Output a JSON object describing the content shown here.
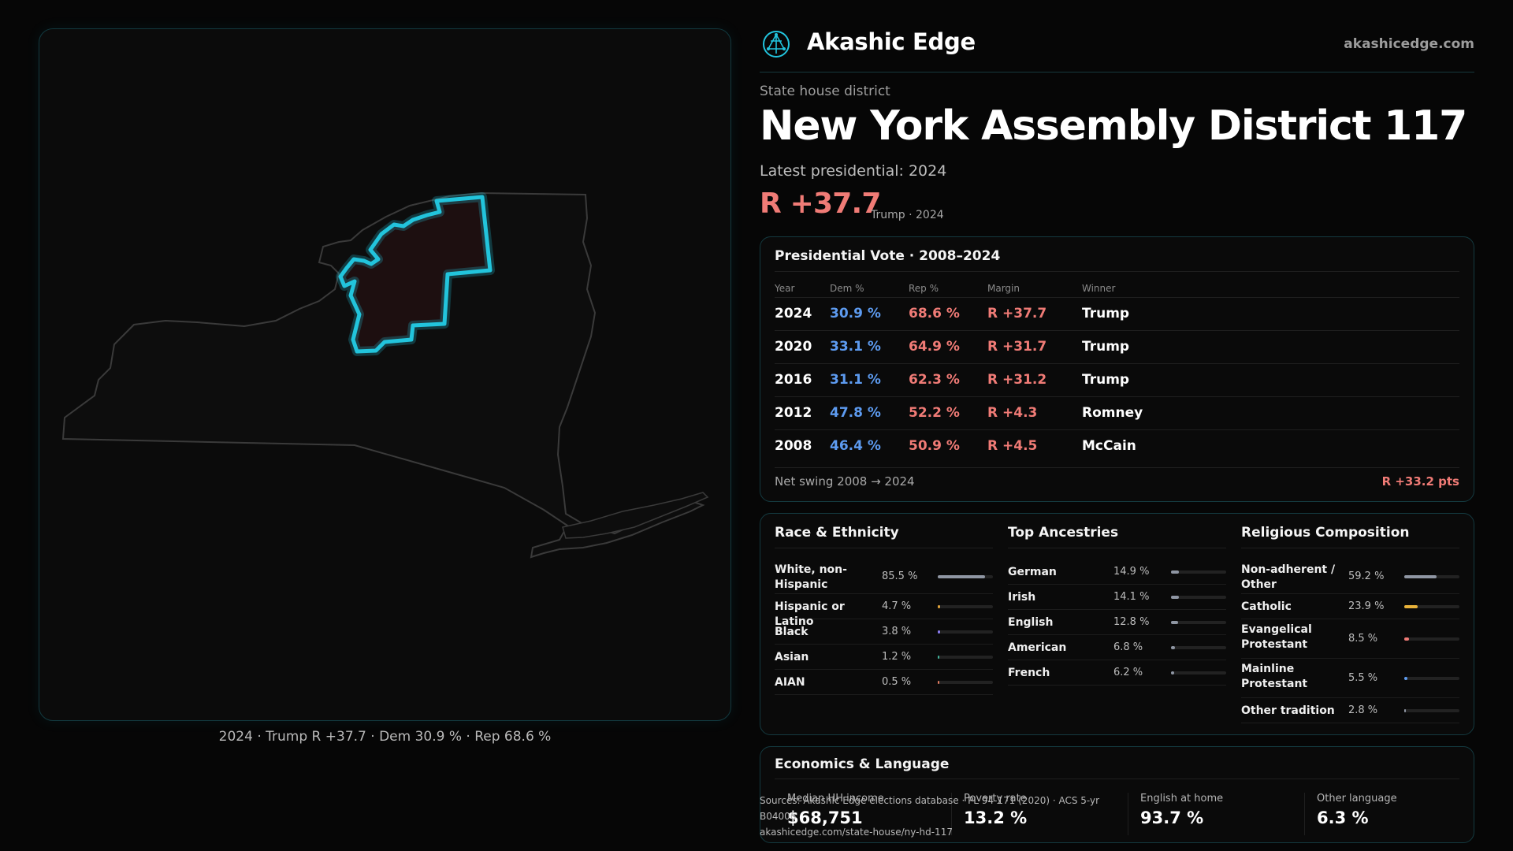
{
  "brand": {
    "name": "Akashic Edge",
    "url": "akashicedge.com",
    "logo_icon": "geodesic-node-icon",
    "accent_color": "#22c4dd"
  },
  "header": {
    "subtitle": "State house district",
    "title": "New York  Assembly District 117",
    "latest_label": "Latest presidential: 2024",
    "margin": "R +37.7",
    "margin_sub": "Trump · 2024"
  },
  "map": {
    "caption": "2024 · Trump R +37.7 · Dem 30.9 % · Rep 68.6 %",
    "state": "New York",
    "highlight_color": "#22c4dd"
  },
  "presidential": {
    "title": "Presidential Vote · 2008–2024",
    "columns": [
      "Year",
      "Dem %",
      "Rep %",
      "Margin",
      "Winner"
    ],
    "rows": [
      {
        "year": "2024",
        "dem": "30.9 %",
        "rep": "68.6 %",
        "margin": "R +37.7",
        "winner": "Trump"
      },
      {
        "year": "2020",
        "dem": "33.1 %",
        "rep": "64.9 %",
        "margin": "R +31.7",
        "winner": "Trump"
      },
      {
        "year": "2016",
        "dem": "31.1 %",
        "rep": "62.3 %",
        "margin": "R +31.2",
        "winner": "Trump"
      },
      {
        "year": "2012",
        "dem": "47.8 %",
        "rep": "52.2 %",
        "margin": "R +4.3",
        "winner": "Romney"
      },
      {
        "year": "2008",
        "dem": "46.4 %",
        "rep": "50.9 %",
        "margin": "R +4.5",
        "winner": "McCain"
      }
    ],
    "net_swing_label": "Net swing 2008 → 2024",
    "net_swing_value": "R +33.2 pts",
    "dem_color": "#5d9bf0",
    "rep_color": "#f07b76"
  },
  "race": {
    "title": "Race & Ethnicity",
    "items": [
      {
        "label": "White, non-Hispanic",
        "value": "85.5 %",
        "share": 0.855,
        "color": "#8f96a3"
      },
      {
        "label": "Hispanic or Latino",
        "value": "4.7 %",
        "share": 0.047,
        "color": "#e0a23a"
      },
      {
        "label": "Black",
        "value": "3.8 %",
        "share": 0.038,
        "color": "#8a7cf0"
      },
      {
        "label": "Asian",
        "value": "1.2 %",
        "share": 0.012,
        "color": "#3fb39a"
      },
      {
        "label": "AIAN",
        "value": "0.5 %",
        "share": 0.005,
        "color": "#e07a5f"
      }
    ]
  },
  "ancestry": {
    "title": "Top Ancestries",
    "items": [
      {
        "label": "German",
        "value": "14.9 %",
        "share": 0.149,
        "color": "#8f96a3"
      },
      {
        "label": "Irish",
        "value": "14.1 %",
        "share": 0.141,
        "color": "#8f96a3"
      },
      {
        "label": "English",
        "value": "12.8 %",
        "share": 0.128,
        "color": "#8f96a3"
      },
      {
        "label": "American",
        "value": "6.8 %",
        "share": 0.068,
        "color": "#8f96a3"
      },
      {
        "label": "French",
        "value": "6.2 %",
        "share": 0.062,
        "color": "#8f96a3"
      }
    ]
  },
  "religion": {
    "title": "Religious Composition",
    "items": [
      {
        "label": "Non-adherent / Other",
        "value": "59.2 %",
        "share": 0.592,
        "color": "#8f96a3"
      },
      {
        "label": "Catholic",
        "value": "23.9 %",
        "share": 0.239,
        "color": "#e8b23a"
      },
      {
        "label": "Evangelical Protestant",
        "value": "8.5 %",
        "share": 0.085,
        "color": "#f07b76"
      },
      {
        "label": "Mainline Protestant",
        "value": "5.5 %",
        "share": 0.055,
        "color": "#5d9bf0"
      },
      {
        "label": "Other tradition",
        "value": "2.8 %",
        "share": 0.028,
        "color": "#8f96a3"
      }
    ]
  },
  "economics": {
    "title": "Economics & Language",
    "cells": [
      {
        "label": "Median HH income",
        "value": "$68,751"
      },
      {
        "label": "Poverty rate",
        "value": "13.2 %"
      },
      {
        "label": "English at home",
        "value": "93.7 %"
      },
      {
        "label": "Other language",
        "value": "6.3 %"
      }
    ]
  },
  "source": {
    "line1": "Sources: Akashic Edge elections database · PL 94-171 (2020) · ACS 5-yr B04006",
    "line2": "akashicedge.com/state-house/ny-hd-117"
  }
}
